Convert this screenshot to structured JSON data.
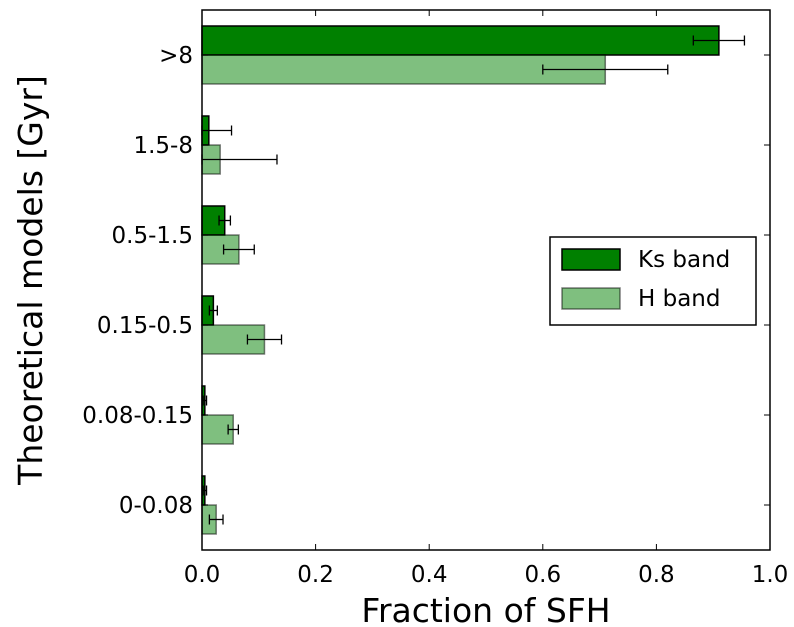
{
  "chart_data": {
    "type": "bar",
    "orientation": "horizontal",
    "title": "",
    "xlabel": "Fraction of SFH",
    "ylabel": "Theoretical models [Gyr]",
    "xlim": [
      0.0,
      1.0
    ],
    "xticks": [
      "0.0",
      "0.2",
      "0.4",
      "0.6",
      "0.8",
      "1.0"
    ],
    "categories": [
      ">8",
      "1.5-8",
      "0.5-1.5",
      "0.15-0.5",
      "0.08-0.15",
      "0-0.08"
    ],
    "series": [
      {
        "name": "Ks band",
        "color": "#008000",
        "opacity": 1.0,
        "values": [
          0.91,
          0.012,
          0.04,
          0.02,
          0.005,
          0.005
        ],
        "errors": [
          0.045,
          0.04,
          0.01,
          0.007,
          0.003,
          0.003
        ]
      },
      {
        "name": "H band",
        "color": "#008000",
        "opacity": 0.5,
        "values": [
          0.71,
          0.032,
          0.065,
          0.11,
          0.055,
          0.025
        ],
        "errors": [
          0.11,
          0.1,
          0.027,
          0.03,
          0.009,
          0.012
        ]
      }
    ],
    "grid": false,
    "legend": {
      "position": "right-center"
    }
  }
}
